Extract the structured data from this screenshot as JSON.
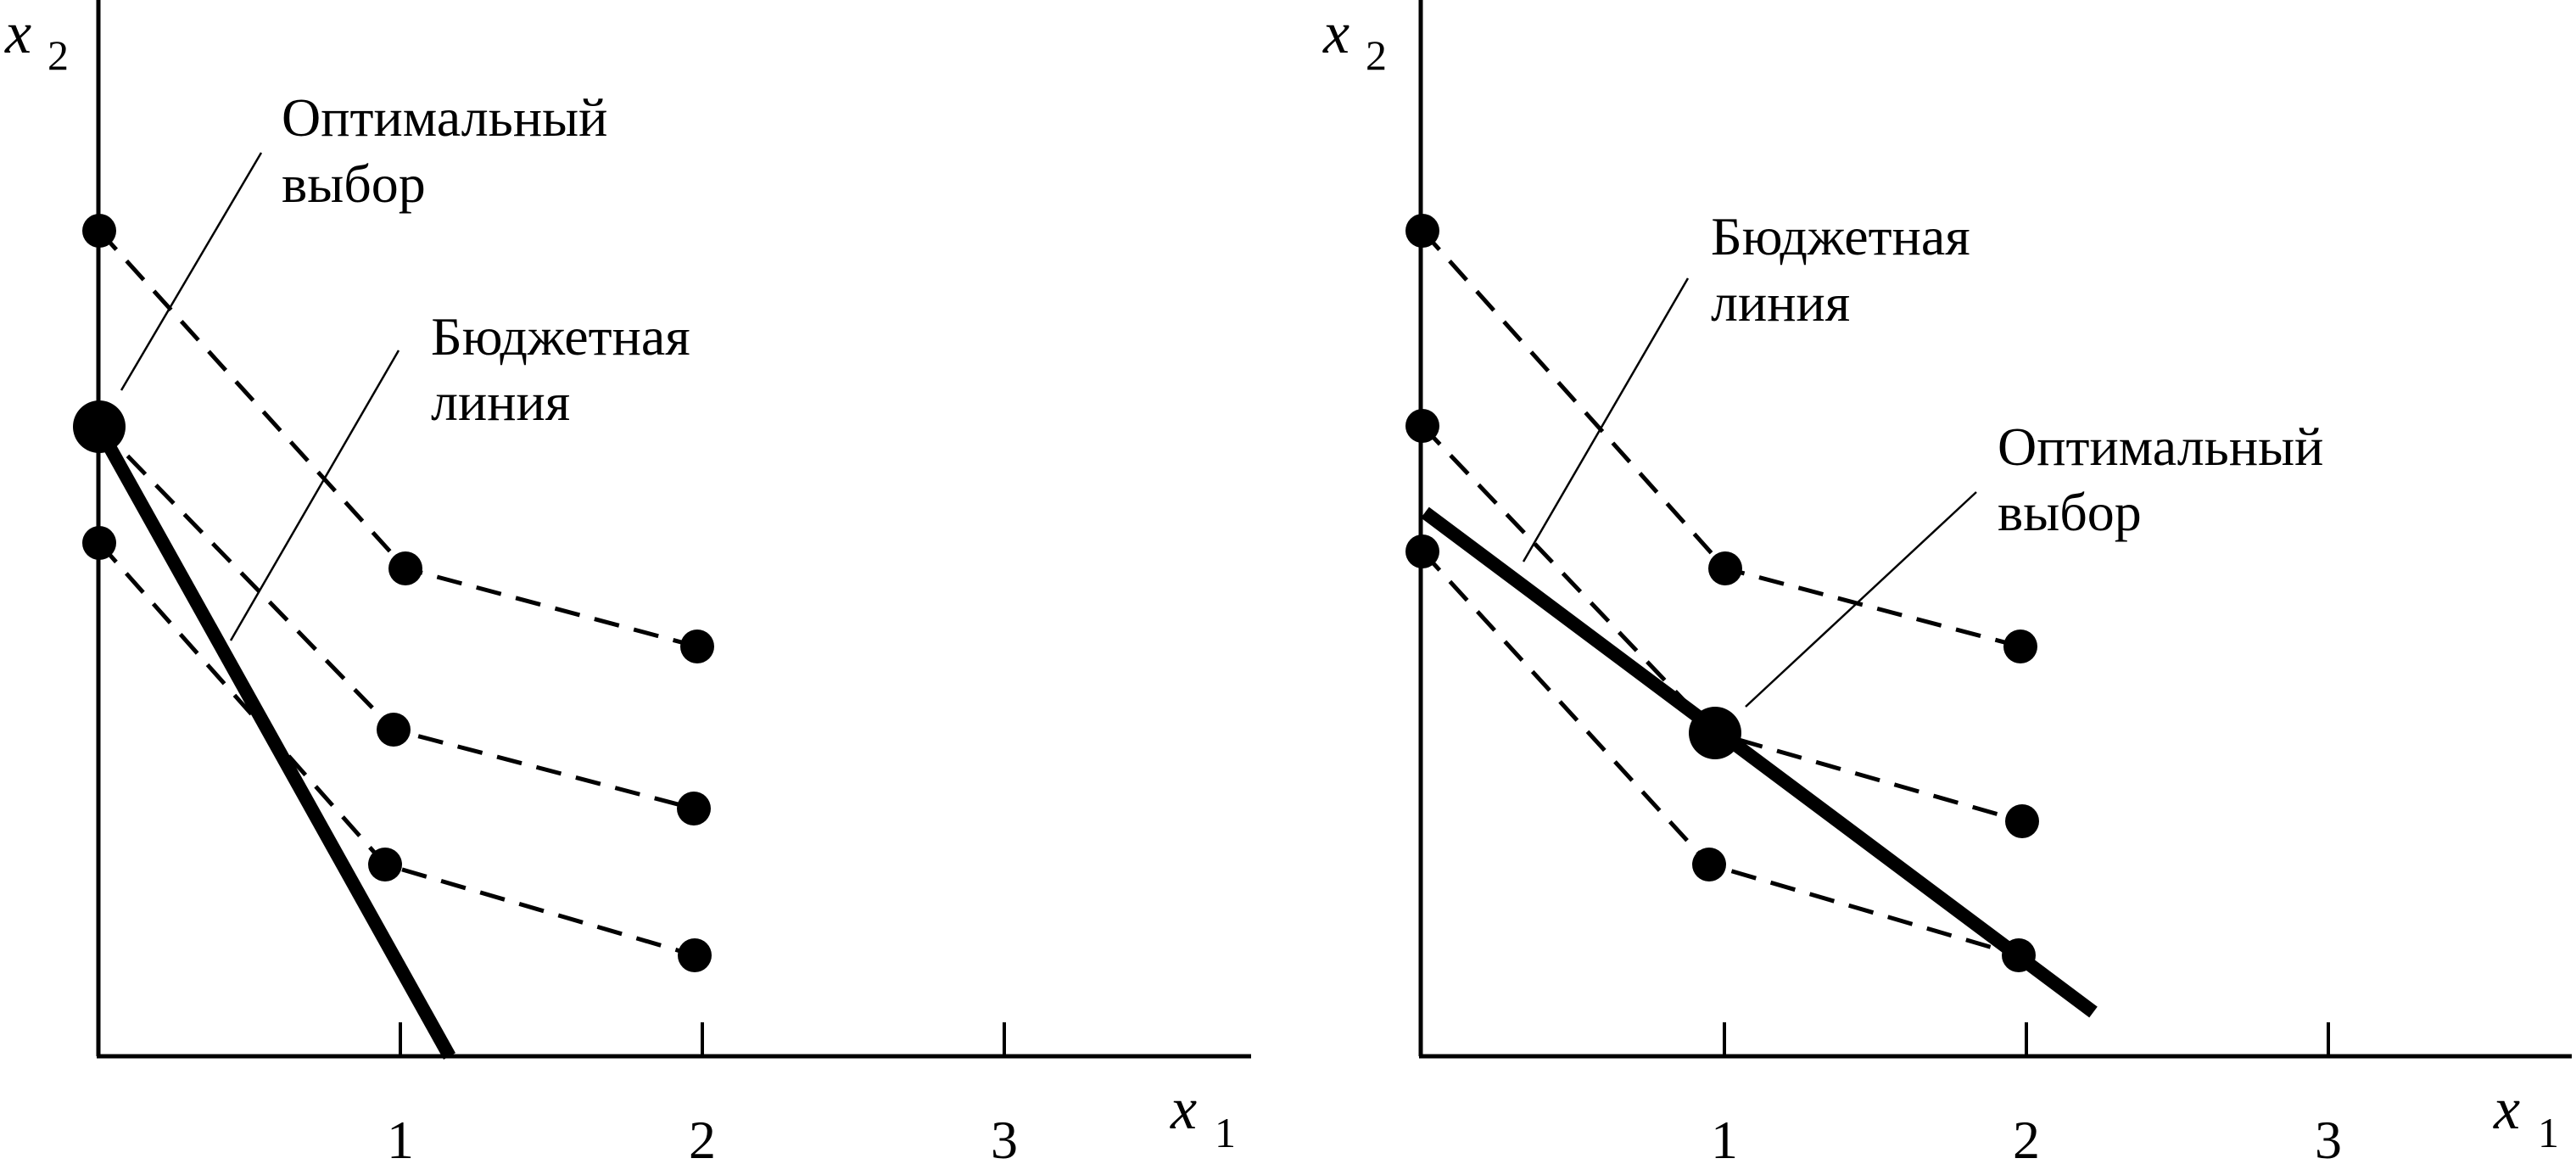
{
  "panels": [
    {
      "x_axis": {
        "var": "x",
        "sub": "1"
      },
      "y_axis": {
        "var": "x",
        "sub": "2"
      },
      "ticks": [
        "1",
        "2",
        "3"
      ],
      "label_optimal": [
        "Оптимальный",
        "выбор"
      ],
      "label_budget": [
        "Бюджетная",
        "линия"
      ]
    },
    {
      "x_axis": {
        "var": "x",
        "sub": "1"
      },
      "y_axis": {
        "var": "x",
        "sub": "2"
      },
      "ticks": [
        "1",
        "2",
        "3"
      ],
      "label_optimal": [
        "Оптимальный",
        "выбор"
      ],
      "label_budget": [
        "Бюджетная",
        "линия"
      ]
    }
  ]
}
